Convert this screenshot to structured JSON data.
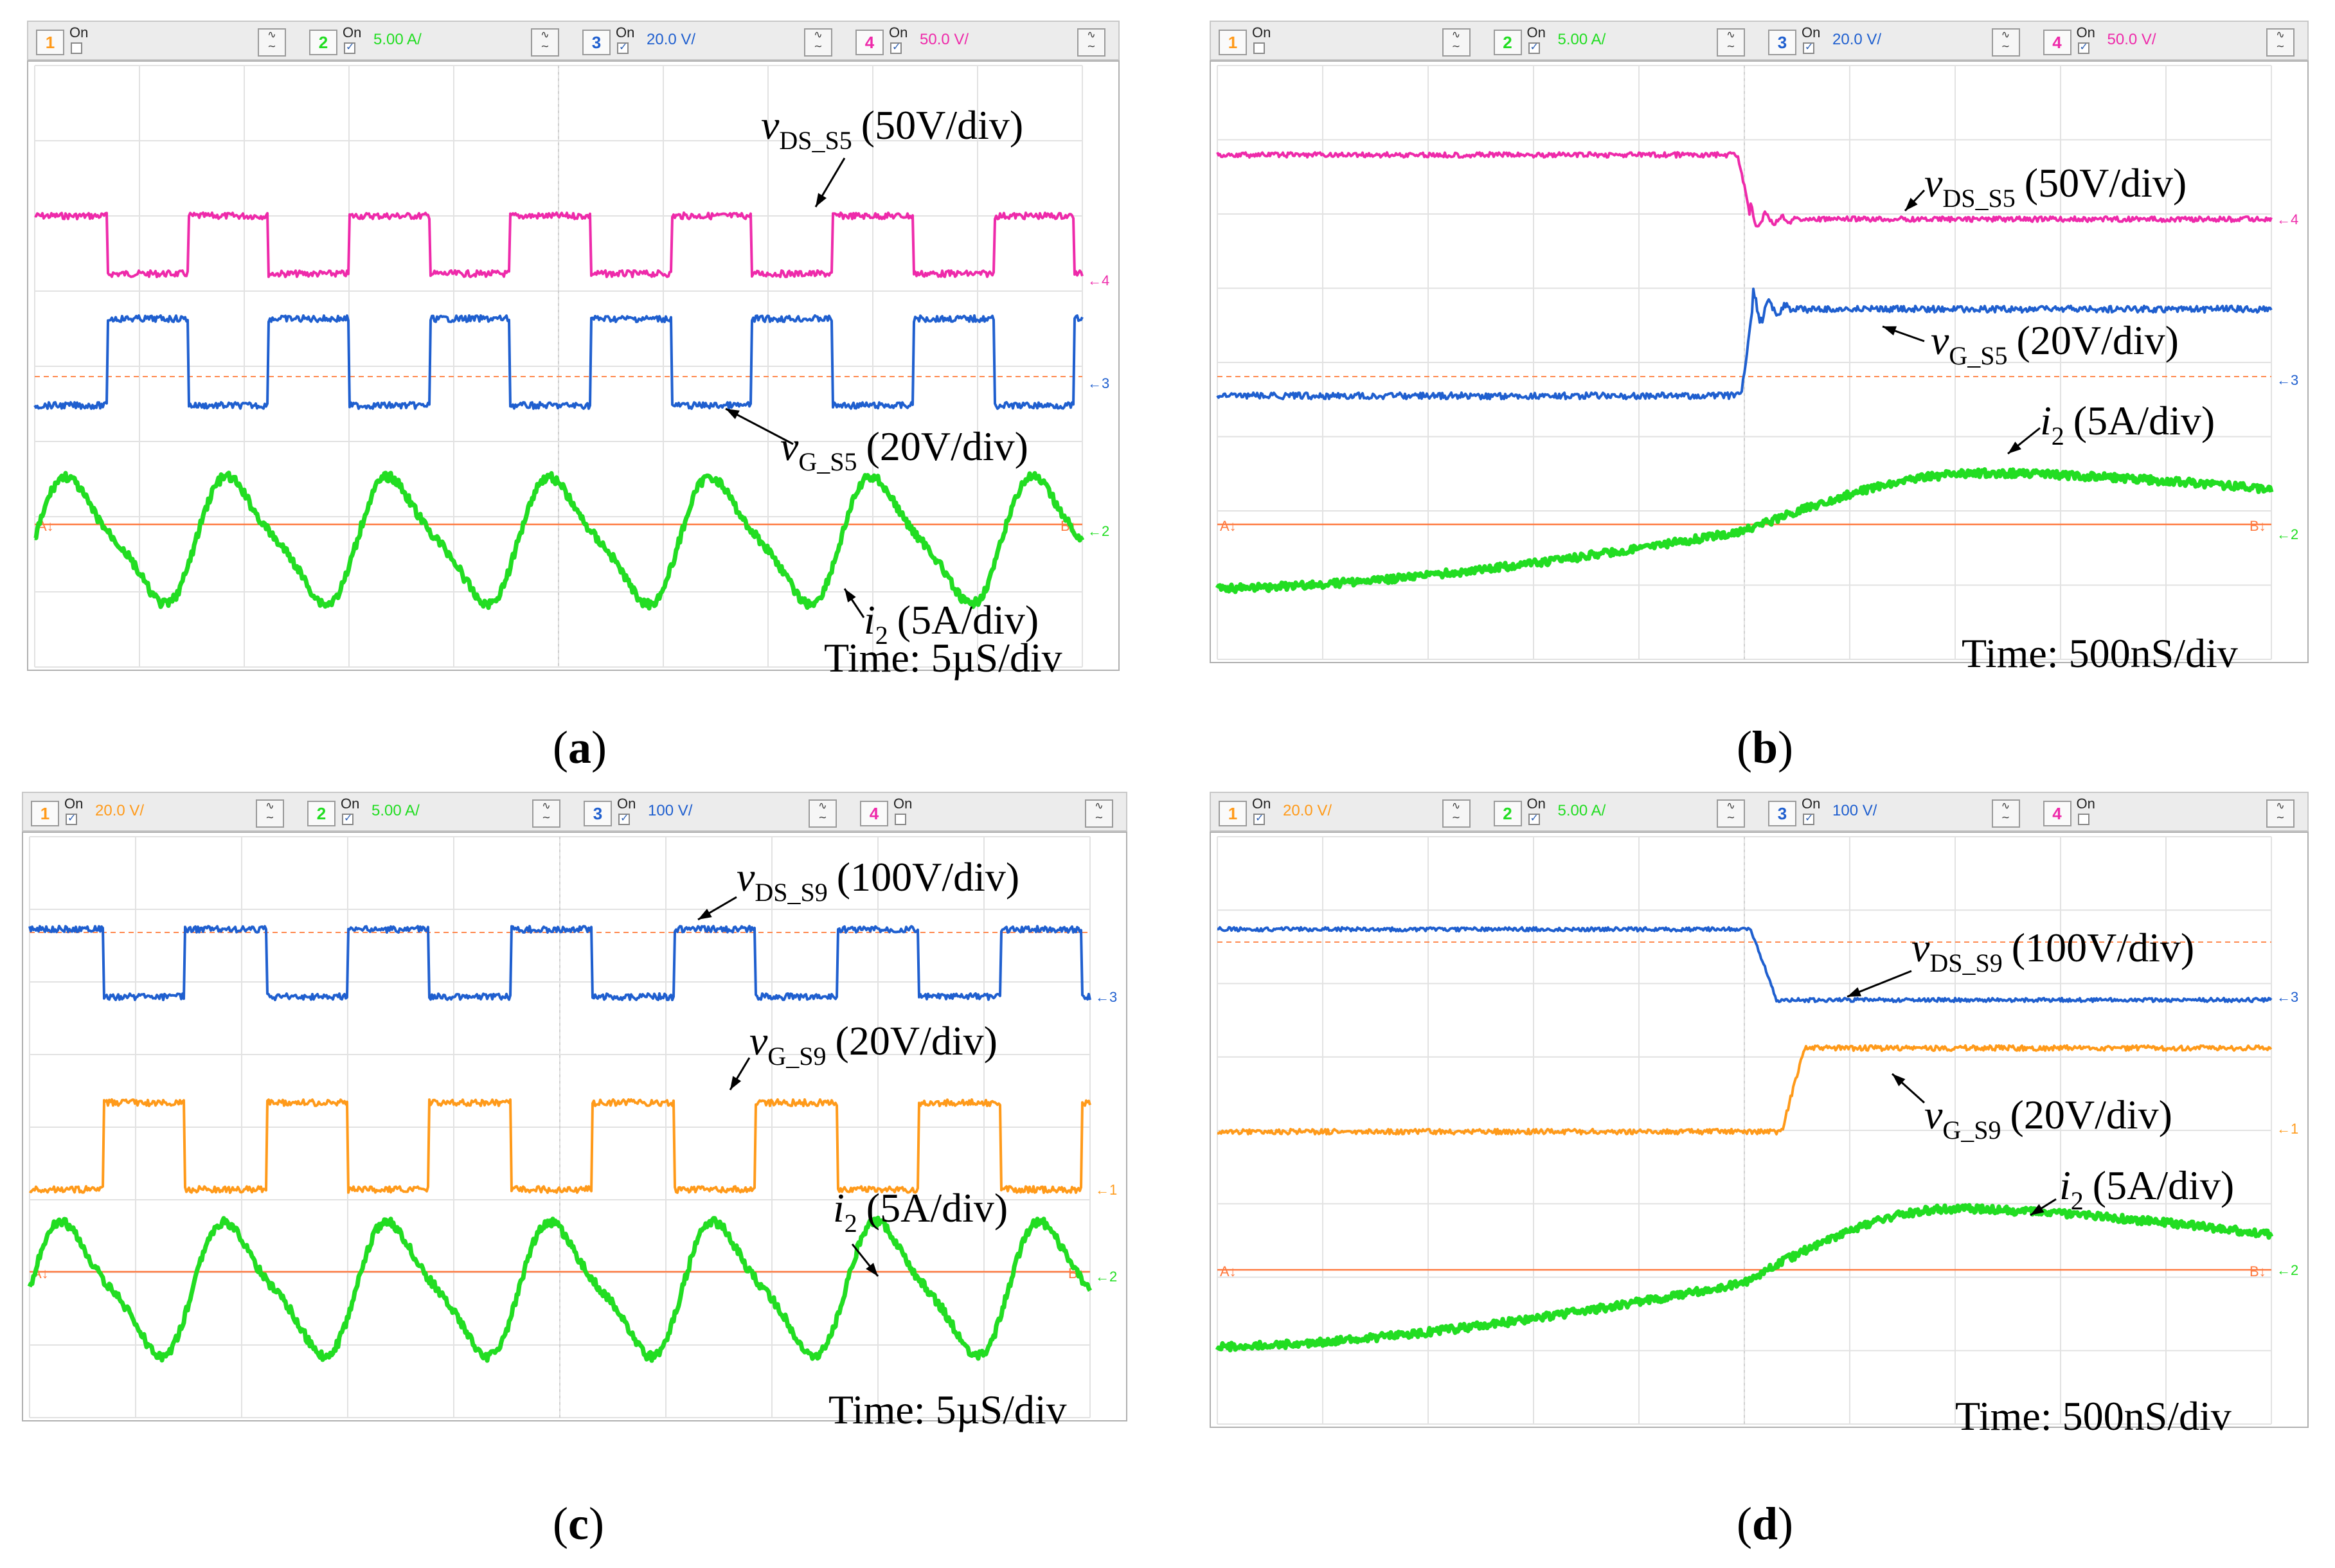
{
  "chart_data": [
    {
      "type": "line",
      "panel": "(a)",
      "caption_letter": "a",
      "channels": [
        {
          "num": "1",
          "on": false,
          "scale": ""
        },
        {
          "num": "2",
          "on": true,
          "scale": "5.00 A/"
        },
        {
          "num": "3",
          "on": true,
          "scale": "20.0 V/"
        },
        {
          "num": "4",
          "on": true,
          "scale": "50.0 V/"
        }
      ],
      "series": [
        {
          "name": "vDS_S5",
          "label_main": "v",
          "label_sub": "DS_S5",
          "label_scale": "(50V/div)",
          "channel": "4",
          "color": "#ee2aaa"
        },
        {
          "name": "vG_S5",
          "label_main": "v",
          "label_sub": "G_S5",
          "label_scale": "(20V/div)",
          "channel": "3",
          "color": "#1f5fcf"
        },
        {
          "name": "i2",
          "label_main": "i",
          "label_sub": "2",
          "label_scale": "(5A/div)",
          "channel": "2",
          "color": "#22dd22"
        }
      ],
      "waveform": "square-switching with sinusoidal current",
      "periods_shown": 6.5,
      "timebase": "Time: 5µS/div",
      "channel_markers": [
        "4",
        "3",
        "2"
      ],
      "ref_markers": [
        "A",
        "B"
      ]
    },
    {
      "type": "line",
      "panel": "(b)",
      "caption_letter": "b",
      "channels": [
        {
          "num": "1",
          "on": false,
          "scale": ""
        },
        {
          "num": "2",
          "on": true,
          "scale": "5.00 A/"
        },
        {
          "num": "3",
          "on": true,
          "scale": "20.0 V/"
        },
        {
          "num": "4",
          "on": true,
          "scale": "50.0 V/"
        }
      ],
      "series": [
        {
          "name": "vDS_S5",
          "label_main": "v",
          "label_sub": "DS_S5",
          "label_scale": "(50V/div)",
          "channel": "4",
          "color": "#ee2aaa"
        },
        {
          "name": "vG_S5",
          "label_main": "v",
          "label_sub": "G_S5",
          "label_scale": "(20V/div)",
          "channel": "3",
          "color": "#1f5fcf"
        },
        {
          "name": "i2",
          "label_main": "i",
          "label_sub": "2",
          "label_scale": "(5A/div)",
          "channel": "2",
          "color": "#22dd22"
        }
      ],
      "waveform": "zoomed single switching transition",
      "timebase": "Time: 500nS/div",
      "channel_markers": [
        "4",
        "3",
        "2"
      ],
      "ref_markers": [
        "A",
        "B"
      ]
    },
    {
      "type": "line",
      "panel": "(c)",
      "caption_letter": "c",
      "channels": [
        {
          "num": "1",
          "on": true,
          "scale": "20.0 V/"
        },
        {
          "num": "2",
          "on": true,
          "scale": "5.00 A/"
        },
        {
          "num": "3",
          "on": true,
          "scale": "100 V/"
        },
        {
          "num": "4",
          "on": false,
          "scale": ""
        }
      ],
      "series": [
        {
          "name": "vDS_S9",
          "label_main": "v",
          "label_sub": "DS_S9",
          "label_scale": "(100V/div)",
          "channel": "3",
          "color": "#1f5fcf"
        },
        {
          "name": "vG_S9",
          "label_main": "v",
          "label_sub": "G_S9",
          "label_scale": "(20V/div)",
          "channel": "1",
          "color": "#ff9a1a"
        },
        {
          "name": "i2",
          "label_main": "i",
          "label_sub": "2",
          "label_scale": "(5A/div)",
          "channel": "2",
          "color": "#22dd22"
        }
      ],
      "waveform": "square-switching with sinusoidal current",
      "periods_shown": 6.5,
      "timebase": "Time: 5µS/div",
      "channel_markers": [
        "3",
        "1",
        "2"
      ],
      "ref_markers": [
        "A",
        "B"
      ]
    },
    {
      "type": "line",
      "panel": "(d)",
      "caption_letter": "d",
      "channels": [
        {
          "num": "1",
          "on": true,
          "scale": "20.0 V/"
        },
        {
          "num": "2",
          "on": true,
          "scale": "5.00 A/"
        },
        {
          "num": "3",
          "on": true,
          "scale": "100 V/"
        },
        {
          "num": "4",
          "on": false,
          "scale": ""
        }
      ],
      "series": [
        {
          "name": "vDS_S9",
          "label_main": "v",
          "label_sub": "DS_S9",
          "label_scale": "(100V/div)",
          "channel": "3",
          "color": "#1f5fcf"
        },
        {
          "name": "vG_S9",
          "label_main": "v",
          "label_sub": "G_S9",
          "label_scale": "(20V/div)",
          "channel": "1",
          "color": "#ff9a1a"
        },
        {
          "name": "i2",
          "label_main": "i",
          "label_sub": "2",
          "label_scale": "(5A/div)",
          "channel": "2",
          "color": "#22dd22"
        }
      ],
      "waveform": "zoomed single switching transition",
      "timebase": "Time: 500nS/div",
      "channel_markers": [
        "3",
        "1",
        "2"
      ],
      "ref_markers": [
        "A",
        "B"
      ]
    }
  ],
  "channel_colors": {
    "1": "#ff9a1a",
    "2": "#22dd22",
    "3": "#1f5fcf",
    "4": "#ee2aaa",
    "trigger": "#ff8a50"
  },
  "coupling_glyph": "∿ ∼"
}
